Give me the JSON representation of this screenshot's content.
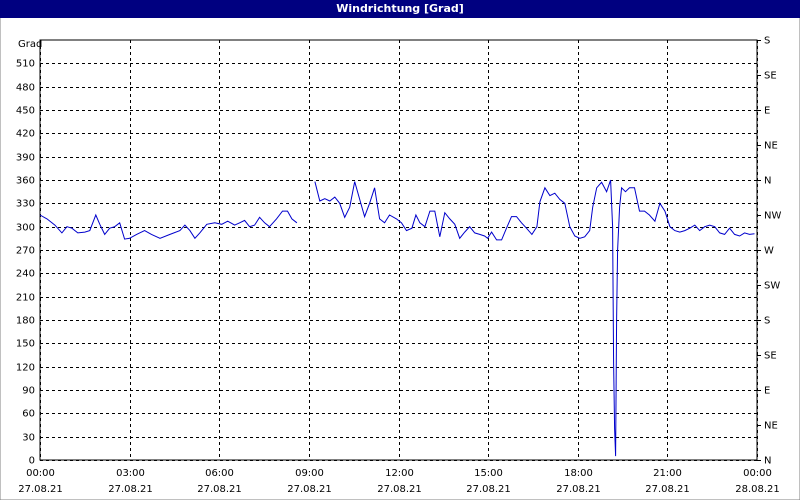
{
  "chart_data": {
    "type": "line",
    "title": "Windrichtung [Grad]",
    "ylabel": "Grad",
    "xlim": [
      0,
      1440
    ],
    "ylim": [
      0,
      540
    ],
    "y2lim": [
      0,
      540
    ],
    "grid": true,
    "color": "#0000cc",
    "yticks": [
      0,
      30,
      60,
      90,
      120,
      150,
      180,
      210,
      240,
      270,
      300,
      330,
      360,
      390,
      420,
      450,
      480,
      510
    ],
    "y2ticks": [
      {
        "value": 0,
        "label": "N"
      },
      {
        "value": 45,
        "label": "NE"
      },
      {
        "value": 90,
        "label": "E"
      },
      {
        "value": 135,
        "label": "SE"
      },
      {
        "value": 180,
        "label": "S"
      },
      {
        "value": 225,
        "label": "SW"
      },
      {
        "value": 270,
        "label": "W"
      },
      {
        "value": 315,
        "label": "NW"
      },
      {
        "value": 360,
        "label": "N"
      },
      {
        "value": 405,
        "label": "NE"
      },
      {
        "value": 450,
        "label": "E"
      },
      {
        "value": 495,
        "label": "SE"
      },
      {
        "value": 540,
        "label": "S"
      }
    ],
    "xticks": [
      {
        "value": 0,
        "label": "00:00"
      },
      {
        "value": 180,
        "label": "03:00"
      },
      {
        "value": 360,
        "label": "06:00"
      },
      {
        "value": 540,
        "label": "09:00"
      },
      {
        "value": 720,
        "label": "12:00"
      },
      {
        "value": 900,
        "label": "15:00"
      },
      {
        "value": 1080,
        "label": "18:00"
      },
      {
        "value": 1260,
        "label": "21:00"
      },
      {
        "value": 1440,
        "label": "00:00"
      }
    ],
    "xtick_dates": [
      "27.08.21",
      "27.08.21",
      "27.08.21",
      "27.08.21",
      "27.08.21",
      "27.08.21",
      "27.08.21",
      "27.08.21",
      "28.08.21"
    ],
    "x": [
      0,
      14,
      30,
      44,
      54,
      64,
      76,
      90,
      100,
      112,
      120,
      130,
      140,
      150,
      160,
      170,
      180,
      194,
      210,
      224,
      241,
      261,
      281,
      291,
      301,
      311,
      321,
      335,
      351,
      365,
      377,
      391,
      401,
      411,
      421,
      431,
      441,
      451,
      461,
      475,
      487,
      497,
      506,
      516,
      525,
      552,
      562,
      572,
      582,
      592,
      602,
      612,
      622,
      632,
      642,
      652,
      662,
      672,
      682,
      692,
      702,
      716,
      726,
      736,
      747,
      755,
      763,
      773,
      783,
      793,
      803,
      813,
      823,
      833,
      843,
      853,
      863,
      873,
      883,
      893,
      899,
      907,
      917,
      927,
      937,
      947,
      957,
      967,
      977,
      988,
      998,
      1004,
      1014,
      1024,
      1034,
      1044,
      1054,
      1064,
      1074,
      1084,
      1094,
      1104,
      1110,
      1118,
      1128,
      1138,
      1146,
      1150,
      1152,
      1154,
      1156,
      1158,
      1160,
      1164,
      1168,
      1176,
      1184,
      1194,
      1204,
      1214,
      1224,
      1235,
      1245,
      1255,
      1265,
      1275,
      1285,
      1295,
      1305,
      1315,
      1325,
      1335,
      1345,
      1355,
      1365,
      1375,
      1385,
      1395,
      1405,
      1415,
      1425,
      1435
    ],
    "values": [
      315,
      310,
      302,
      292,
      300,
      298,
      292,
      293,
      295,
      315,
      303,
      290,
      298,
      300,
      305,
      284,
      285,
      290,
      295,
      290,
      285,
      290,
      295,
      302,
      295,
      285,
      292,
      303,
      305,
      303,
      307,
      302,
      305,
      308,
      300,
      302,
      312,
      305,
      300,
      310,
      320,
      320,
      310,
      305,
      null,
      358,
      333,
      336,
      333,
      338,
      330,
      312,
      325,
      358,
      335,
      313,
      330,
      350,
      310,
      305,
      315,
      310,
      305,
      295,
      298,
      315,
      305,
      300,
      320,
      320,
      287,
      318,
      310,
      303,
      285,
      293,
      300,
      292,
      290,
      288,
      285,
      293,
      283,
      283,
      298,
      313,
      313,
      305,
      298,
      290,
      300,
      332,
      350,
      340,
      343,
      335,
      330,
      300,
      288,
      285,
      287,
      295,
      325,
      350,
      357,
      345,
      360,
      300,
      125,
      40,
      5,
      180,
      270,
      325,
      350,
      345,
      350,
      350,
      320,
      320,
      315,
      307,
      330,
      320,
      300,
      295,
      293,
      295,
      298,
      302,
      295,
      300,
      302,
      300,
      292,
      290,
      298,
      290,
      288,
      292,
      290,
      291
    ]
  }
}
